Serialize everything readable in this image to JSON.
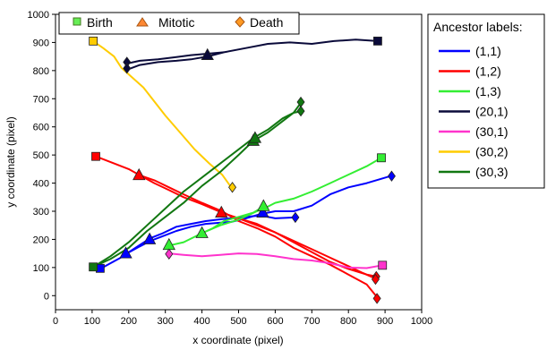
{
  "chart_data": {
    "type": "line",
    "title": "",
    "xlabel": "x coordinate (pixel)",
    "ylabel": "y coordinate (pixel)",
    "xlim": [
      0,
      1000
    ],
    "ylim": [
      -50,
      1000
    ],
    "xticks": [
      0,
      100,
      200,
      300,
      400,
      500,
      600,
      700,
      800,
      900,
      1000
    ],
    "yticks": [
      0,
      100,
      200,
      300,
      400,
      500,
      600,
      700,
      800,
      900,
      1000
    ],
    "grid": false,
    "event_legend": {
      "placement": "top-left",
      "entries": [
        {
          "label": "Birth",
          "marker": "square"
        },
        {
          "label": "Mitotic",
          "marker": "triangle"
        },
        {
          "label": "Death",
          "marker": "diamond"
        }
      ]
    },
    "ancestor_legend": {
      "title": "Ancestor labels:",
      "placement": "outside-right"
    },
    "series": [
      {
        "name": "(1,1)",
        "color": "#0000ff",
        "tracks": [
          [
            [
              125,
              97
            ],
            [
              150,
              115
            ],
            [
              185,
              140
            ],
            [
              195,
              150
            ],
            [
              230,
              175
            ],
            [
              260,
              195
            ],
            [
              290,
              210
            ],
            [
              330,
              230
            ],
            [
              370,
              245
            ],
            [
              410,
              255
            ],
            [
              455,
              260
            ],
            [
              480,
              262
            ],
            [
              520,
              275
            ],
            [
              560,
              290
            ],
            [
              600,
              300
            ],
            [
              650,
              300
            ],
            [
              700,
              320
            ],
            [
              750,
              360
            ],
            [
              800,
              385
            ],
            [
              850,
              400
            ],
            [
              915,
              425
            ]
          ],
          [
            [
              195,
              150
            ],
            [
              230,
              180
            ],
            [
              260,
              205
            ],
            [
              290,
              220
            ],
            [
              330,
              245
            ],
            [
              370,
              255
            ],
            [
              410,
              265
            ],
            [
              455,
              272
            ],
            [
              480,
              275
            ],
            [
              520,
              280
            ],
            [
              560,
              285
            ],
            [
              600,
              275
            ],
            [
              655,
              278
            ]
          ]
        ],
        "markers": [
          {
            "type": "square",
            "x": 122,
            "y": 97
          },
          {
            "type": "triangle",
            "x": 192,
            "y": 150
          },
          {
            "type": "triangle",
            "x": 257,
            "y": 200
          },
          {
            "type": "triangle",
            "x": 566,
            "y": 295
          },
          {
            "type": "diamond",
            "x": 918,
            "y": 425
          },
          {
            "type": "diamond",
            "x": 655,
            "y": 278
          }
        ]
      },
      {
        "name": "(1,2)",
        "color": "#ff0000",
        "tracks": [
          [
            [
              110,
              495
            ],
            [
              160,
              470
            ],
            [
              200,
              450
            ],
            [
              230,
              428
            ],
            [
              270,
              400
            ],
            [
              310,
              375
            ],
            [
              350,
              350
            ],
            [
              400,
              325
            ],
            [
              455,
              295
            ],
            [
              500,
              275
            ],
            [
              550,
              250
            ],
            [
              600,
              225
            ],
            [
              650,
              195
            ],
            [
              700,
              165
            ],
            [
              750,
              135
            ],
            [
              800,
              105
            ],
            [
              840,
              80
            ],
            [
              875,
              60
            ]
          ],
          [
            [
              230,
              428
            ],
            [
              270,
              410
            ],
            [
              310,
              385
            ],
            [
              350,
              360
            ],
            [
              400,
              330
            ],
            [
              455,
              300
            ],
            [
              500,
              265
            ],
            [
              550,
              240
            ],
            [
              600,
              210
            ],
            [
              650,
              170
            ],
            [
              700,
              140
            ],
            [
              750,
              110
            ],
            [
              800,
              75
            ],
            [
              850,
              40
            ],
            [
              878,
              -5
            ]
          ],
          [
            [
              455,
              295
            ],
            [
              500,
              275
            ],
            [
              550,
              255
            ],
            [
              600,
              225
            ],
            [
              650,
              190
            ],
            [
              700,
              155
            ],
            [
              750,
              120
            ],
            [
              800,
              95
            ],
            [
              850,
              75
            ],
            [
              876,
              68
            ]
          ]
        ],
        "markers": [
          {
            "type": "square",
            "x": 110,
            "y": 495
          },
          {
            "type": "triangle",
            "x": 228,
            "y": 428
          },
          {
            "type": "triangle",
            "x": 453,
            "y": 295
          },
          {
            "type": "diamond",
            "x": 876,
            "y": 68
          },
          {
            "type": "diamond",
            "x": 874,
            "y": 58
          },
          {
            "type": "diamond",
            "x": 878,
            "y": -10
          }
        ]
      },
      {
        "name": "(1,3)",
        "color": "#33ee33",
        "tracks": [
          [
            [
              310,
              178
            ],
            [
              350,
              190
            ],
            [
              400,
              222
            ],
            [
              450,
              250
            ],
            [
              500,
              270
            ],
            [
              550,
              300
            ],
            [
              570,
              310
            ],
            [
              600,
              330
            ],
            [
              650,
              345
            ],
            [
              700,
              370
            ],
            [
              750,
              400
            ],
            [
              800,
              430
            ],
            [
              850,
              460
            ],
            [
              890,
              490
            ]
          ],
          [
            [
              400,
              222
            ],
            [
              430,
              240
            ],
            [
              460,
              265
            ],
            [
              500,
              280
            ],
            [
              540,
              295
            ],
            [
              570,
              318
            ]
          ]
        ],
        "markers": [
          {
            "type": "triangle",
            "x": 310,
            "y": 180
          },
          {
            "type": "triangle",
            "x": 400,
            "y": 222
          },
          {
            "type": "triangle",
            "x": 568,
            "y": 318
          },
          {
            "type": "square",
            "x": 890,
            "y": 490
          }
        ]
      },
      {
        "name": "(20,1)",
        "color": "#0a0a3a",
        "tracks": [
          [
            [
              195,
              803
            ],
            [
              230,
              820
            ],
            [
              280,
              830
            ],
            [
              330,
              835
            ],
            [
              370,
              840
            ],
            [
              415,
              850
            ],
            [
              460,
              865
            ],
            [
              520,
              880
            ],
            [
              580,
              895
            ],
            [
              640,
              900
            ],
            [
              700,
              895
            ],
            [
              760,
              905
            ],
            [
              820,
              910
            ],
            [
              880,
              905
            ]
          ],
          [
            [
              195,
              825
            ],
            [
              230,
              835
            ],
            [
              280,
              840
            ],
            [
              330,
              848
            ],
            [
              370,
              855
            ],
            [
              415,
              860
            ],
            [
              460,
              865
            ]
          ]
        ],
        "markers": [
          {
            "type": "diamond",
            "x": 195,
            "y": 830
          },
          {
            "type": "diamond",
            "x": 195,
            "y": 808
          },
          {
            "type": "triangle",
            "x": 415,
            "y": 855
          },
          {
            "type": "square",
            "x": 880,
            "y": 905
          }
        ]
      },
      {
        "name": "(30,1)",
        "color": "#ff33cc",
        "tracks": [
          [
            [
              310,
              150
            ],
            [
              350,
              145
            ],
            [
              400,
              140
            ],
            [
              450,
              145
            ],
            [
              500,
              150
            ],
            [
              550,
              148
            ],
            [
              600,
              140
            ],
            [
              650,
              130
            ],
            [
              700,
              125
            ],
            [
              750,
              115
            ],
            [
              800,
              100
            ],
            [
              850,
              98
            ],
            [
              893,
              108
            ]
          ]
        ],
        "markers": [
          {
            "type": "diamond",
            "x": 310,
            "y": 148
          },
          {
            "type": "square",
            "x": 893,
            "y": 108
          }
        ]
      },
      {
        "name": "(30,2)",
        "color": "#ffcc00",
        "tracks": [
          [
            [
              103,
              905
            ],
            [
              130,
              880
            ],
            [
              160,
              850
            ],
            [
              180,
              810
            ],
            [
              210,
              775
            ],
            [
              240,
              740
            ],
            [
              270,
              690
            ],
            [
              300,
              640
            ],
            [
              340,
              580
            ],
            [
              380,
              520
            ],
            [
              420,
              470
            ],
            [
              455,
              430
            ],
            [
              480,
              385
            ]
          ]
        ],
        "markers": [
          {
            "type": "square",
            "x": 103,
            "y": 905
          },
          {
            "type": "diamond",
            "x": 483,
            "y": 385
          }
        ]
      },
      {
        "name": "(30,3)",
        "color": "#117711",
        "tracks": [
          [
            [
              103,
              102
            ],
            [
              150,
              130
            ],
            [
              200,
              170
            ],
            [
              250,
              230
            ],
            [
              300,
              280
            ],
            [
              350,
              330
            ],
            [
              400,
              390
            ],
            [
              450,
              440
            ],
            [
              500,
              500
            ],
            [
              540,
              550
            ],
            [
              580,
              580
            ],
            [
              620,
              620
            ],
            [
              650,
              650
            ],
            [
              670,
              685
            ]
          ],
          [
            [
              103,
              102
            ],
            [
              150,
              140
            ],
            [
              200,
              190
            ],
            [
              250,
              250
            ],
            [
              300,
              310
            ],
            [
              350,
              370
            ],
            [
              400,
              420
            ],
            [
              450,
              470
            ],
            [
              500,
              520
            ],
            [
              540,
              560
            ],
            [
              580,
              590
            ],
            [
              620,
              630
            ],
            [
              650,
              650
            ],
            [
              670,
              655
            ]
          ]
        ],
        "markers": [
          {
            "type": "square",
            "x": 103,
            "y": 102
          },
          {
            "type": "triangle",
            "x": 540,
            "y": 550
          },
          {
            "type": "triangle",
            "x": 545,
            "y": 560
          },
          {
            "type": "diamond",
            "x": 670,
            "y": 688
          },
          {
            "type": "diamond",
            "x": 670,
            "y": 656
          }
        ]
      }
    ]
  }
}
